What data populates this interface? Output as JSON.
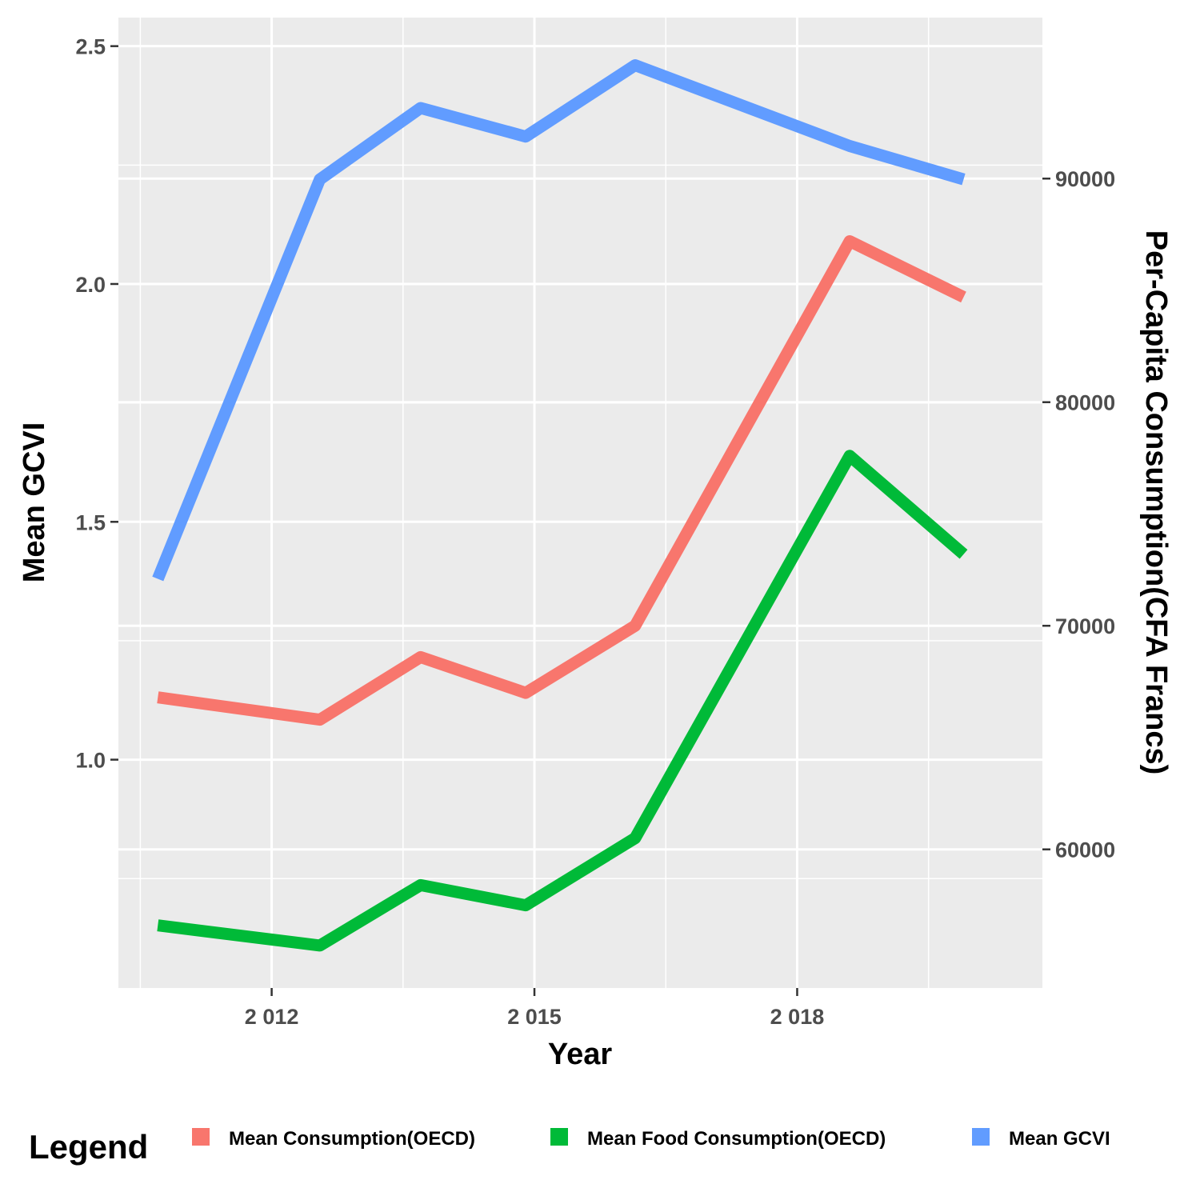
{
  "chart_data": {
    "type": "line",
    "xlabel": "Year",
    "ylabel": "Mean GCVI",
    "y2label": "Per-Capita Consumption(CFA Francs)",
    "xlim": [
      2010.25,
      2020.8
    ],
    "ylim": [
      0.52,
      2.56
    ],
    "y2lim": [
      53800,
      97200
    ],
    "x_ticks": [
      2012,
      2015,
      2018
    ],
    "x_tick_labels": [
      "2 012",
      "2 015",
      "2 018"
    ],
    "y_ticks": [
      1.0,
      1.5,
      2.0,
      2.5
    ],
    "y_tick_labels": [
      "1.0",
      "1.5",
      "2.0",
      "2.5"
    ],
    "y2_ticks": [
      60000,
      70000,
      80000,
      90000
    ],
    "y2_tick_labels": [
      "60000",
      "70000",
      "80000",
      "90000"
    ],
    "grid": true,
    "legend": {
      "title": "Legend",
      "position": "bottom"
    },
    "series": [
      {
        "name": "Mean Consumption(OECD)",
        "axis": "right",
        "color": "#F8766D",
        "x": [
          2010.7,
          2012.55,
          2013.7,
          2014.9,
          2016.15,
          2018.6,
          2019.9
        ],
        "values": [
          66800,
          65800,
          68600,
          67000,
          70000,
          87200,
          84700
        ]
      },
      {
        "name": "Mean Food Consumption(OECD)",
        "axis": "right",
        "color": "#00BA38",
        "x": [
          2010.7,
          2012.55,
          2013.7,
          2014.9,
          2016.15,
          2018.6,
          2019.9
        ],
        "values": [
          56600,
          55700,
          58400,
          57500,
          60500,
          77600,
          73200
        ]
      },
      {
        "name": "Mean GCVI",
        "axis": "left",
        "color": "#619CFF",
        "x": [
          2010.7,
          2012.55,
          2013.7,
          2014.9,
          2016.15,
          2018.6,
          2019.9
        ],
        "values": [
          1.38,
          2.22,
          2.37,
          2.31,
          2.46,
          2.29,
          2.22
        ]
      }
    ]
  }
}
